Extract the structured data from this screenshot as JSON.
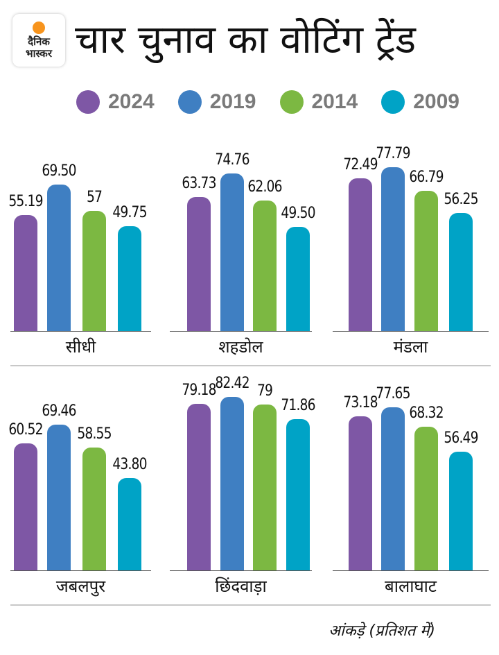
{
  "header": {
    "logo_text_1": "दैनिक",
    "logo_text_2": "भास्कर",
    "title": "चार चुनाव का वोटिंग ट्रेंड"
  },
  "footer_note": "आंकड़े (प्रतिशत में)",
  "chart_data": {
    "type": "bar",
    "title": "चार चुनाव का वोटिंग ट्रेंड",
    "ylabel": "आंकड़े (प्रतिशत में)",
    "legend_position": "top",
    "series_names": [
      "2024",
      "2019",
      "2014",
      "2009"
    ],
    "colors": [
      "#7e57a5",
      "#3f7fc2",
      "#7cb842",
      "#00a3c6"
    ],
    "ylim": [
      0,
      100
    ],
    "panels": [
      {
        "category": "सीधी",
        "values": [
          55.19,
          69.5,
          57,
          49.75
        ],
        "labels": [
          "55.19",
          "69.50",
          "57",
          "49.75"
        ]
      },
      {
        "category": "शहडोल",
        "values": [
          63.73,
          74.76,
          62.06,
          49.5
        ],
        "labels": [
          "63.73",
          "74.76",
          "62.06",
          "49.50"
        ]
      },
      {
        "category": "मंडला",
        "values": [
          72.49,
          77.79,
          66.79,
          56.25
        ],
        "labels": [
          "72.49",
          "77.79",
          "66.79",
          "56.25"
        ]
      },
      {
        "category": "जबलपुर",
        "values": [
          60.52,
          69.46,
          58.55,
          43.8
        ],
        "labels": [
          "60.52",
          "69.46",
          "58.55",
          "43.80"
        ]
      },
      {
        "category": "छिंदवाड़ा",
        "values": [
          79.18,
          82.42,
          79,
          71.86
        ],
        "labels": [
          "79.18",
          "82.42",
          "79",
          "71.86"
        ]
      },
      {
        "category": "बालाघाट",
        "values": [
          73.18,
          77.65,
          68.32,
          56.49
        ],
        "labels": [
          "73.18",
          "77.65",
          "68.32",
          "56.49"
        ]
      }
    ]
  }
}
